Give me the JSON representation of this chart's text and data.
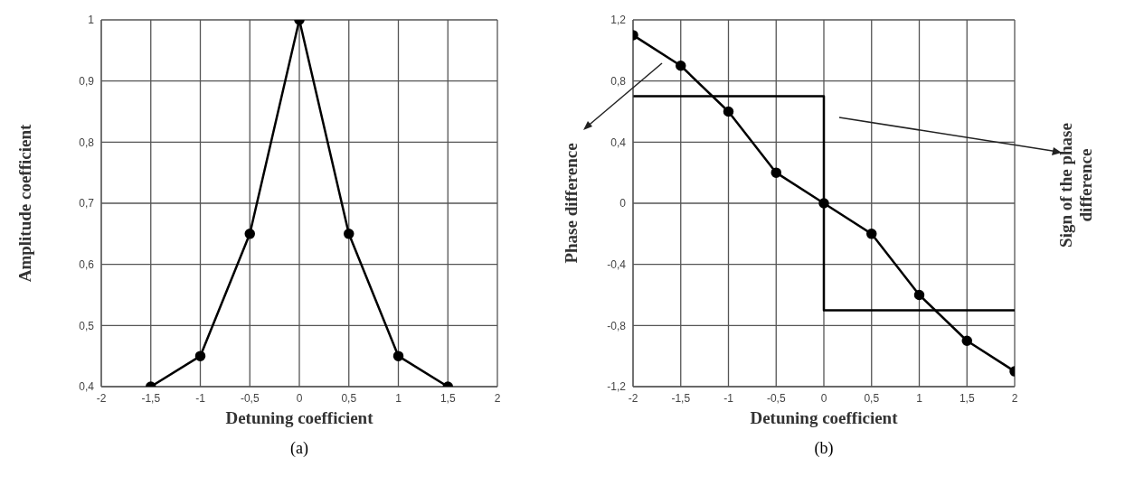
{
  "chart_data": [
    {
      "type": "line",
      "xlabel": "Detuning coefficient",
      "ylabel": "Amplitude coefficient",
      "xlim": [
        -2,
        2
      ],
      "xticks": [
        -2,
        {
          "value": -1.5,
          "label": "-1,5"
        },
        -1,
        {
          "value": -0.5,
          "label": "-0,5"
        },
        0,
        {
          "value": 0.5,
          "label": "0,5"
        },
        1,
        {
          "value": 1.5,
          "label": "1,5"
        },
        2
      ],
      "ylim": [
        0.4,
        1
      ],
      "yticks": [
        {
          "value": 0.4,
          "label": "0,4"
        },
        {
          "value": 0.5,
          "label": "0,5"
        },
        {
          "value": 0.6,
          "label": "0,6"
        },
        {
          "value": 0.7,
          "label": "0,7"
        },
        {
          "value": 0.8,
          "label": "0,8"
        },
        {
          "value": 0.9,
          "label": "0,9"
        },
        1
      ],
      "grid": true,
      "marker": "circle",
      "legend": false,
      "series": [
        {
          "type": "line",
          "color": "#000000",
          "x": [
            -1.5,
            -1,
            -0.5,
            0,
            0.5,
            1,
            1.5
          ],
          "values": [
            0.4,
            0.45,
            0.65,
            1,
            0.65,
            0.45,
            0.4
          ]
        }
      ],
      "annotations": [
        "(a)"
      ]
    },
    {
      "type": "line",
      "xlabel": "Detuning coefficient",
      "ylabel": "Phase difference",
      "y2label": "Sign of the phase difference",
      "xlim": [
        -2,
        2
      ],
      "xticks": [
        -2,
        {
          "value": -1.5,
          "label": "-1,5"
        },
        -1,
        {
          "value": -0.5,
          "label": "-0,5"
        },
        0,
        {
          "value": 0.5,
          "label": "0,5"
        },
        1,
        {
          "value": 1.5,
          "label": "1,5"
        },
        2
      ],
      "ylim": [
        -1.2,
        1.2
      ],
      "yticks": [
        {
          "value": -1.2,
          "label": "-1,2"
        },
        {
          "value": -0.8,
          "label": "-0,8"
        },
        {
          "value": -0.4,
          "label": "-0,4"
        },
        0,
        {
          "value": 0.4,
          "label": "0,4"
        },
        {
          "value": 0.8,
          "label": "0,8"
        },
        {
          "value": 1.2,
          "label": "1,2"
        }
      ],
      "grid": true,
      "marker": "circle",
      "legend": false,
      "series": [
        {
          "type": "line",
          "color": "#000000",
          "x": [
            -2,
            -1.5,
            -1,
            -0.5,
            0,
            0.5,
            1,
            1.5,
            2
          ],
          "values": [
            1.1,
            0.9,
            0.6,
            0.2,
            0,
            -0.2,
            -0.6,
            -0.9,
            -1.1
          ]
        },
        {
          "type": "step",
          "marker": "none",
          "color": "#000000",
          "x": [
            -2,
            0,
            2
          ],
          "values": [
            0.7,
            -0.7,
            -0.7
          ]
        }
      ],
      "annotations": [
        "(b)"
      ]
    }
  ]
}
